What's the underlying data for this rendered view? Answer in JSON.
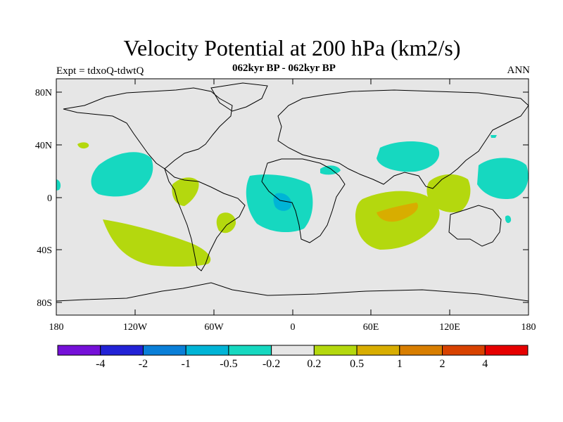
{
  "title": "Velocity Potential at 200 hPa (km2/s)",
  "expt_label": "Expt = tdxoQ-tdwtQ",
  "subtitle": "062kyr BP - 062kyr BP",
  "season": "ANN",
  "colors": {
    "background": "#e6e6e6",
    "coast": "#000000"
  },
  "y_axis": [
    "80N",
    "40N",
    "0",
    "40S",
    "80S"
  ],
  "x_axis": [
    "180",
    "120W",
    "60W",
    "0",
    "60E",
    "120E",
    "180"
  ],
  "colorbar": {
    "colors": [
      "#7510d8",
      "#2222d6",
      "#0a7fd8",
      "#00b4d6",
      "#16d8c0",
      "#e6e6e6",
      "#b4d80e",
      "#d8ad00",
      "#d87e00",
      "#d84200",
      "#e60000"
    ],
    "labels": [
      "-4",
      "-2",
      "-1",
      "-0.5",
      "-0.2",
      "0.2",
      "0.5",
      "1",
      "2",
      "4"
    ]
  },
  "regions": [
    {
      "level": "-0.2",
      "color": "#16d8c0",
      "area": "eastern tropical Pacific"
    },
    {
      "level": "-0.2",
      "color": "#16d8c0",
      "area": "Atlantic / tropical Africa"
    },
    {
      "level": "-0.5",
      "color": "#00b4d6",
      "area": "Gulf of Guinea"
    },
    {
      "level": "-0.2",
      "color": "#16d8c0",
      "area": "Middle East"
    },
    {
      "level": "-0.2",
      "color": "#16d8c0",
      "area": "western tropical Pacific"
    },
    {
      "level": "0.2",
      "color": "#b4d80e",
      "area": "southeast Pacific"
    },
    {
      "level": "0.2",
      "color": "#b4d80e",
      "area": "Indian Ocean"
    },
    {
      "level": "0.5",
      "color": "#d8ad00",
      "area": "central Indian Ocean"
    },
    {
      "level": "0.2",
      "color": "#b4d80e",
      "area": "Maritime Continent"
    }
  ]
}
